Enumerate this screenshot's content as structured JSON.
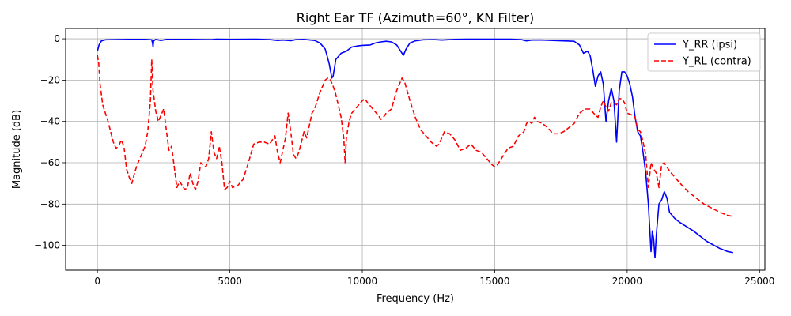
{
  "chart_data": {
    "type": "line",
    "title": "Right Ear TF (Azimuth=60°, KN Filter)",
    "xlabel": "Frequency (Hz)",
    "ylabel": "Magnitude (dB)",
    "xlim": [
      -1200,
      25200
    ],
    "ylim": [
      -112,
      5
    ],
    "xticks": [
      0,
      5000,
      10000,
      15000,
      20000,
      25000
    ],
    "yticks": [
      0,
      -20,
      -40,
      -60,
      -80,
      -100
    ],
    "grid": true,
    "legend_position": "top-right",
    "series": [
      {
        "name": "Y_RR (ipsi)",
        "color": "#0000ff",
        "style": "solid",
        "points": [
          [
            0,
            -6
          ],
          [
            60,
            -3
          ],
          [
            150,
            -1
          ],
          [
            300,
            -0.5
          ],
          [
            600,
            -0.4
          ],
          [
            1200,
            -0.3
          ],
          [
            1800,
            -0.3
          ],
          [
            2050,
            -0.5
          ],
          [
            2080,
            -2
          ],
          [
            2100,
            -4
          ],
          [
            2120,
            -1
          ],
          [
            2200,
            -0.3
          ],
          [
            2400,
            -0.8
          ],
          [
            2600,
            -0.3
          ],
          [
            3500,
            -0.3
          ],
          [
            4300,
            -0.4
          ],
          [
            4500,
            -0.2
          ],
          [
            5000,
            -0.3
          ],
          [
            6000,
            -0.2
          ],
          [
            6500,
            -0.4
          ],
          [
            6800,
            -0.8
          ],
          [
            7000,
            -0.6
          ],
          [
            7300,
            -0.9
          ],
          [
            7500,
            -0.4
          ],
          [
            7800,
            -0.3
          ],
          [
            8200,
            -0.8
          ],
          [
            8400,
            -2
          ],
          [
            8600,
            -5
          ],
          [
            8750,
            -12
          ],
          [
            8850,
            -19
          ],
          [
            8900,
            -18
          ],
          [
            9000,
            -10
          ],
          [
            9200,
            -7
          ],
          [
            9400,
            -6
          ],
          [
            9600,
            -4
          ],
          [
            9800,
            -3.5
          ],
          [
            10000,
            -3.2
          ],
          [
            10300,
            -3
          ],
          [
            10500,
            -2
          ],
          [
            10700,
            -1.5
          ],
          [
            10900,
            -1.2
          ],
          [
            11100,
            -1.5
          ],
          [
            11300,
            -3
          ],
          [
            11450,
            -6
          ],
          [
            11550,
            -8
          ],
          [
            11650,
            -5
          ],
          [
            11800,
            -2
          ],
          [
            12000,
            -1
          ],
          [
            12300,
            -0.5
          ],
          [
            12700,
            -0.4
          ],
          [
            13000,
            -0.6
          ],
          [
            13500,
            -0.3
          ],
          [
            14000,
            -0.2
          ],
          [
            15000,
            -0.2
          ],
          [
            15600,
            -0.2
          ],
          [
            16000,
            -0.4
          ],
          [
            16200,
            -1
          ],
          [
            16400,
            -0.6
          ],
          [
            16800,
            -0.6
          ],
          [
            17200,
            -0.8
          ],
          [
            17600,
            -1
          ],
          [
            18000,
            -1.2
          ],
          [
            18200,
            -3
          ],
          [
            18350,
            -7
          ],
          [
            18500,
            -6
          ],
          [
            18600,
            -8
          ],
          [
            18700,
            -15
          ],
          [
            18800,
            -23
          ],
          [
            18900,
            -18
          ],
          [
            19000,
            -16
          ],
          [
            19100,
            -22
          ],
          [
            19200,
            -40
          ],
          [
            19300,
            -30
          ],
          [
            19400,
            -24
          ],
          [
            19500,
            -30
          ],
          [
            19600,
            -50
          ],
          [
            19700,
            -25
          ],
          [
            19800,
            -16
          ],
          [
            19900,
            -16
          ],
          [
            20000,
            -18
          ],
          [
            20100,
            -22
          ],
          [
            20200,
            -28
          ],
          [
            20300,
            -38
          ],
          [
            20400,
            -45
          ],
          [
            20500,
            -47
          ],
          [
            20600,
            -55
          ],
          [
            20700,
            -65
          ],
          [
            20800,
            -80
          ],
          [
            20900,
            -103
          ],
          [
            20950,
            -93
          ],
          [
            21000,
            -97
          ],
          [
            21050,
            -106
          ],
          [
            21100,
            -95
          ],
          [
            21200,
            -80
          ],
          [
            21300,
            -78
          ],
          [
            21400,
            -74
          ],
          [
            21500,
            -77
          ],
          [
            21600,
            -84
          ],
          [
            21800,
            -87
          ],
          [
            22000,
            -89
          ],
          [
            22500,
            -93
          ],
          [
            23000,
            -98
          ],
          [
            23500,
            -101.5
          ],
          [
            23800,
            -103
          ],
          [
            24000,
            -103.5
          ]
        ]
      },
      {
        "name": "Y_RL (contra)",
        "color": "#ff0000",
        "style": "dashed",
        "points": [
          [
            0,
            -8
          ],
          [
            50,
            -12
          ],
          [
            100,
            -22
          ],
          [
            200,
            -32
          ],
          [
            300,
            -36
          ],
          [
            400,
            -40
          ],
          [
            500,
            -45
          ],
          [
            600,
            -50
          ],
          [
            700,
            -53
          ],
          [
            800,
            -52
          ],
          [
            900,
            -49
          ],
          [
            1000,
            -52
          ],
          [
            1100,
            -63
          ],
          [
            1200,
            -67
          ],
          [
            1300,
            -70
          ],
          [
            1400,
            -65
          ],
          [
            1500,
            -61
          ],
          [
            1600,
            -58
          ],
          [
            1800,
            -52
          ],
          [
            1900,
            -45
          ],
          [
            2000,
            -30
          ],
          [
            2050,
            -10
          ],
          [
            2100,
            -25
          ],
          [
            2200,
            -35
          ],
          [
            2300,
            -40
          ],
          [
            2400,
            -37
          ],
          [
            2500,
            -34
          ],
          [
            2600,
            -44
          ],
          [
            2700,
            -54
          ],
          [
            2800,
            -52
          ],
          [
            2900,
            -62
          ],
          [
            3000,
            -72
          ],
          [
            3100,
            -69
          ],
          [
            3300,
            -73
          ],
          [
            3400,
            -72
          ],
          [
            3500,
            -65
          ],
          [
            3600,
            -70
          ],
          [
            3700,
            -73
          ],
          [
            3800,
            -69
          ],
          [
            3900,
            -60
          ],
          [
            4000,
            -61
          ],
          [
            4100,
            -62
          ],
          [
            4200,
            -58
          ],
          [
            4300,
            -45
          ],
          [
            4400,
            -55
          ],
          [
            4500,
            -58
          ],
          [
            4600,
            -52
          ],
          [
            4700,
            -60
          ],
          [
            4800,
            -73
          ],
          [
            4900,
            -72
          ],
          [
            5000,
            -69
          ],
          [
            5100,
            -72
          ],
          [
            5300,
            -71
          ],
          [
            5500,
            -68
          ],
          [
            5700,
            -60
          ],
          [
            5900,
            -51
          ],
          [
            6100,
            -50
          ],
          [
            6300,
            -50
          ],
          [
            6500,
            -51
          ],
          [
            6700,
            -47
          ],
          [
            6800,
            -55
          ],
          [
            6900,
            -60
          ],
          [
            7000,
            -54
          ],
          [
            7100,
            -48
          ],
          [
            7200,
            -36
          ],
          [
            7300,
            -45
          ],
          [
            7400,
            -56
          ],
          [
            7500,
            -58
          ],
          [
            7600,
            -55
          ],
          [
            7700,
            -50
          ],
          [
            7800,
            -45
          ],
          [
            7900,
            -48
          ],
          [
            8000,
            -42
          ],
          [
            8100,
            -36
          ],
          [
            8200,
            -34
          ],
          [
            8300,
            -30
          ],
          [
            8400,
            -26
          ],
          [
            8500,
            -23
          ],
          [
            8600,
            -20
          ],
          [
            8700,
            -19
          ],
          [
            8800,
            -20
          ],
          [
            8900,
            -23
          ],
          [
            9000,
            -27
          ],
          [
            9200,
            -38
          ],
          [
            9300,
            -48
          ],
          [
            9350,
            -60
          ],
          [
            9400,
            -48
          ],
          [
            9500,
            -40
          ],
          [
            9600,
            -36
          ],
          [
            9800,
            -33
          ],
          [
            10000,
            -30
          ],
          [
            10100,
            -29
          ],
          [
            10200,
            -31
          ],
          [
            10400,
            -34
          ],
          [
            10600,
            -37
          ],
          [
            10700,
            -39
          ],
          [
            10800,
            -38
          ],
          [
            10900,
            -36
          ],
          [
            11100,
            -34
          ],
          [
            11300,
            -25
          ],
          [
            11500,
            -19
          ],
          [
            11600,
            -21
          ],
          [
            11800,
            -30
          ],
          [
            12000,
            -38
          ],
          [
            12200,
            -44
          ],
          [
            12400,
            -47
          ],
          [
            12600,
            -50
          ],
          [
            12800,
            -52
          ],
          [
            12900,
            -51
          ],
          [
            13100,
            -45
          ],
          [
            13300,
            -46
          ],
          [
            13500,
            -49
          ],
          [
            13700,
            -54
          ],
          [
            13900,
            -53
          ],
          [
            14100,
            -51
          ],
          [
            14300,
            -54
          ],
          [
            14500,
            -55
          ],
          [
            14700,
            -58
          ],
          [
            14900,
            -61
          ],
          [
            15000,
            -62
          ],
          [
            15100,
            -61
          ],
          [
            15300,
            -57
          ],
          [
            15500,
            -53
          ],
          [
            15700,
            -52
          ],
          [
            15900,
            -47
          ],
          [
            16100,
            -45
          ],
          [
            16200,
            -41
          ],
          [
            16300,
            -40
          ],
          [
            16400,
            -41
          ],
          [
            16500,
            -38
          ],
          [
            16600,
            -40
          ],
          [
            16800,
            -41
          ],
          [
            17000,
            -43
          ],
          [
            17200,
            -46
          ],
          [
            17400,
            -46
          ],
          [
            17600,
            -45
          ],
          [
            17800,
            -43
          ],
          [
            18000,
            -41
          ],
          [
            18200,
            -36
          ],
          [
            18400,
            -34
          ],
          [
            18600,
            -34
          ],
          [
            18800,
            -37
          ],
          [
            18900,
            -38
          ],
          [
            19000,
            -33
          ],
          [
            19100,
            -30
          ],
          [
            19200,
            -33
          ],
          [
            19300,
            -35
          ],
          [
            19400,
            -31
          ],
          [
            19500,
            -31
          ],
          [
            19600,
            -32
          ],
          [
            19700,
            -29
          ],
          [
            19800,
            -29
          ],
          [
            19900,
            -31
          ],
          [
            20000,
            -36
          ],
          [
            20200,
            -37
          ],
          [
            20300,
            -38
          ],
          [
            20400,
            -44
          ],
          [
            20500,
            -45
          ],
          [
            20600,
            -50
          ],
          [
            20700,
            -56
          ],
          [
            20800,
            -72
          ],
          [
            20900,
            -60
          ],
          [
            21000,
            -63
          ],
          [
            21100,
            -65
          ],
          [
            21200,
            -72
          ],
          [
            21300,
            -61
          ],
          [
            21400,
            -60
          ],
          [
            21600,
            -64
          ],
          [
            21800,
            -67
          ],
          [
            22000,
            -70
          ],
          [
            22300,
            -74
          ],
          [
            22600,
            -77
          ],
          [
            22900,
            -80
          ],
          [
            23200,
            -82
          ],
          [
            23500,
            -84
          ],
          [
            23800,
            -85.5
          ],
          [
            24000,
            -86
          ]
        ]
      }
    ]
  }
}
